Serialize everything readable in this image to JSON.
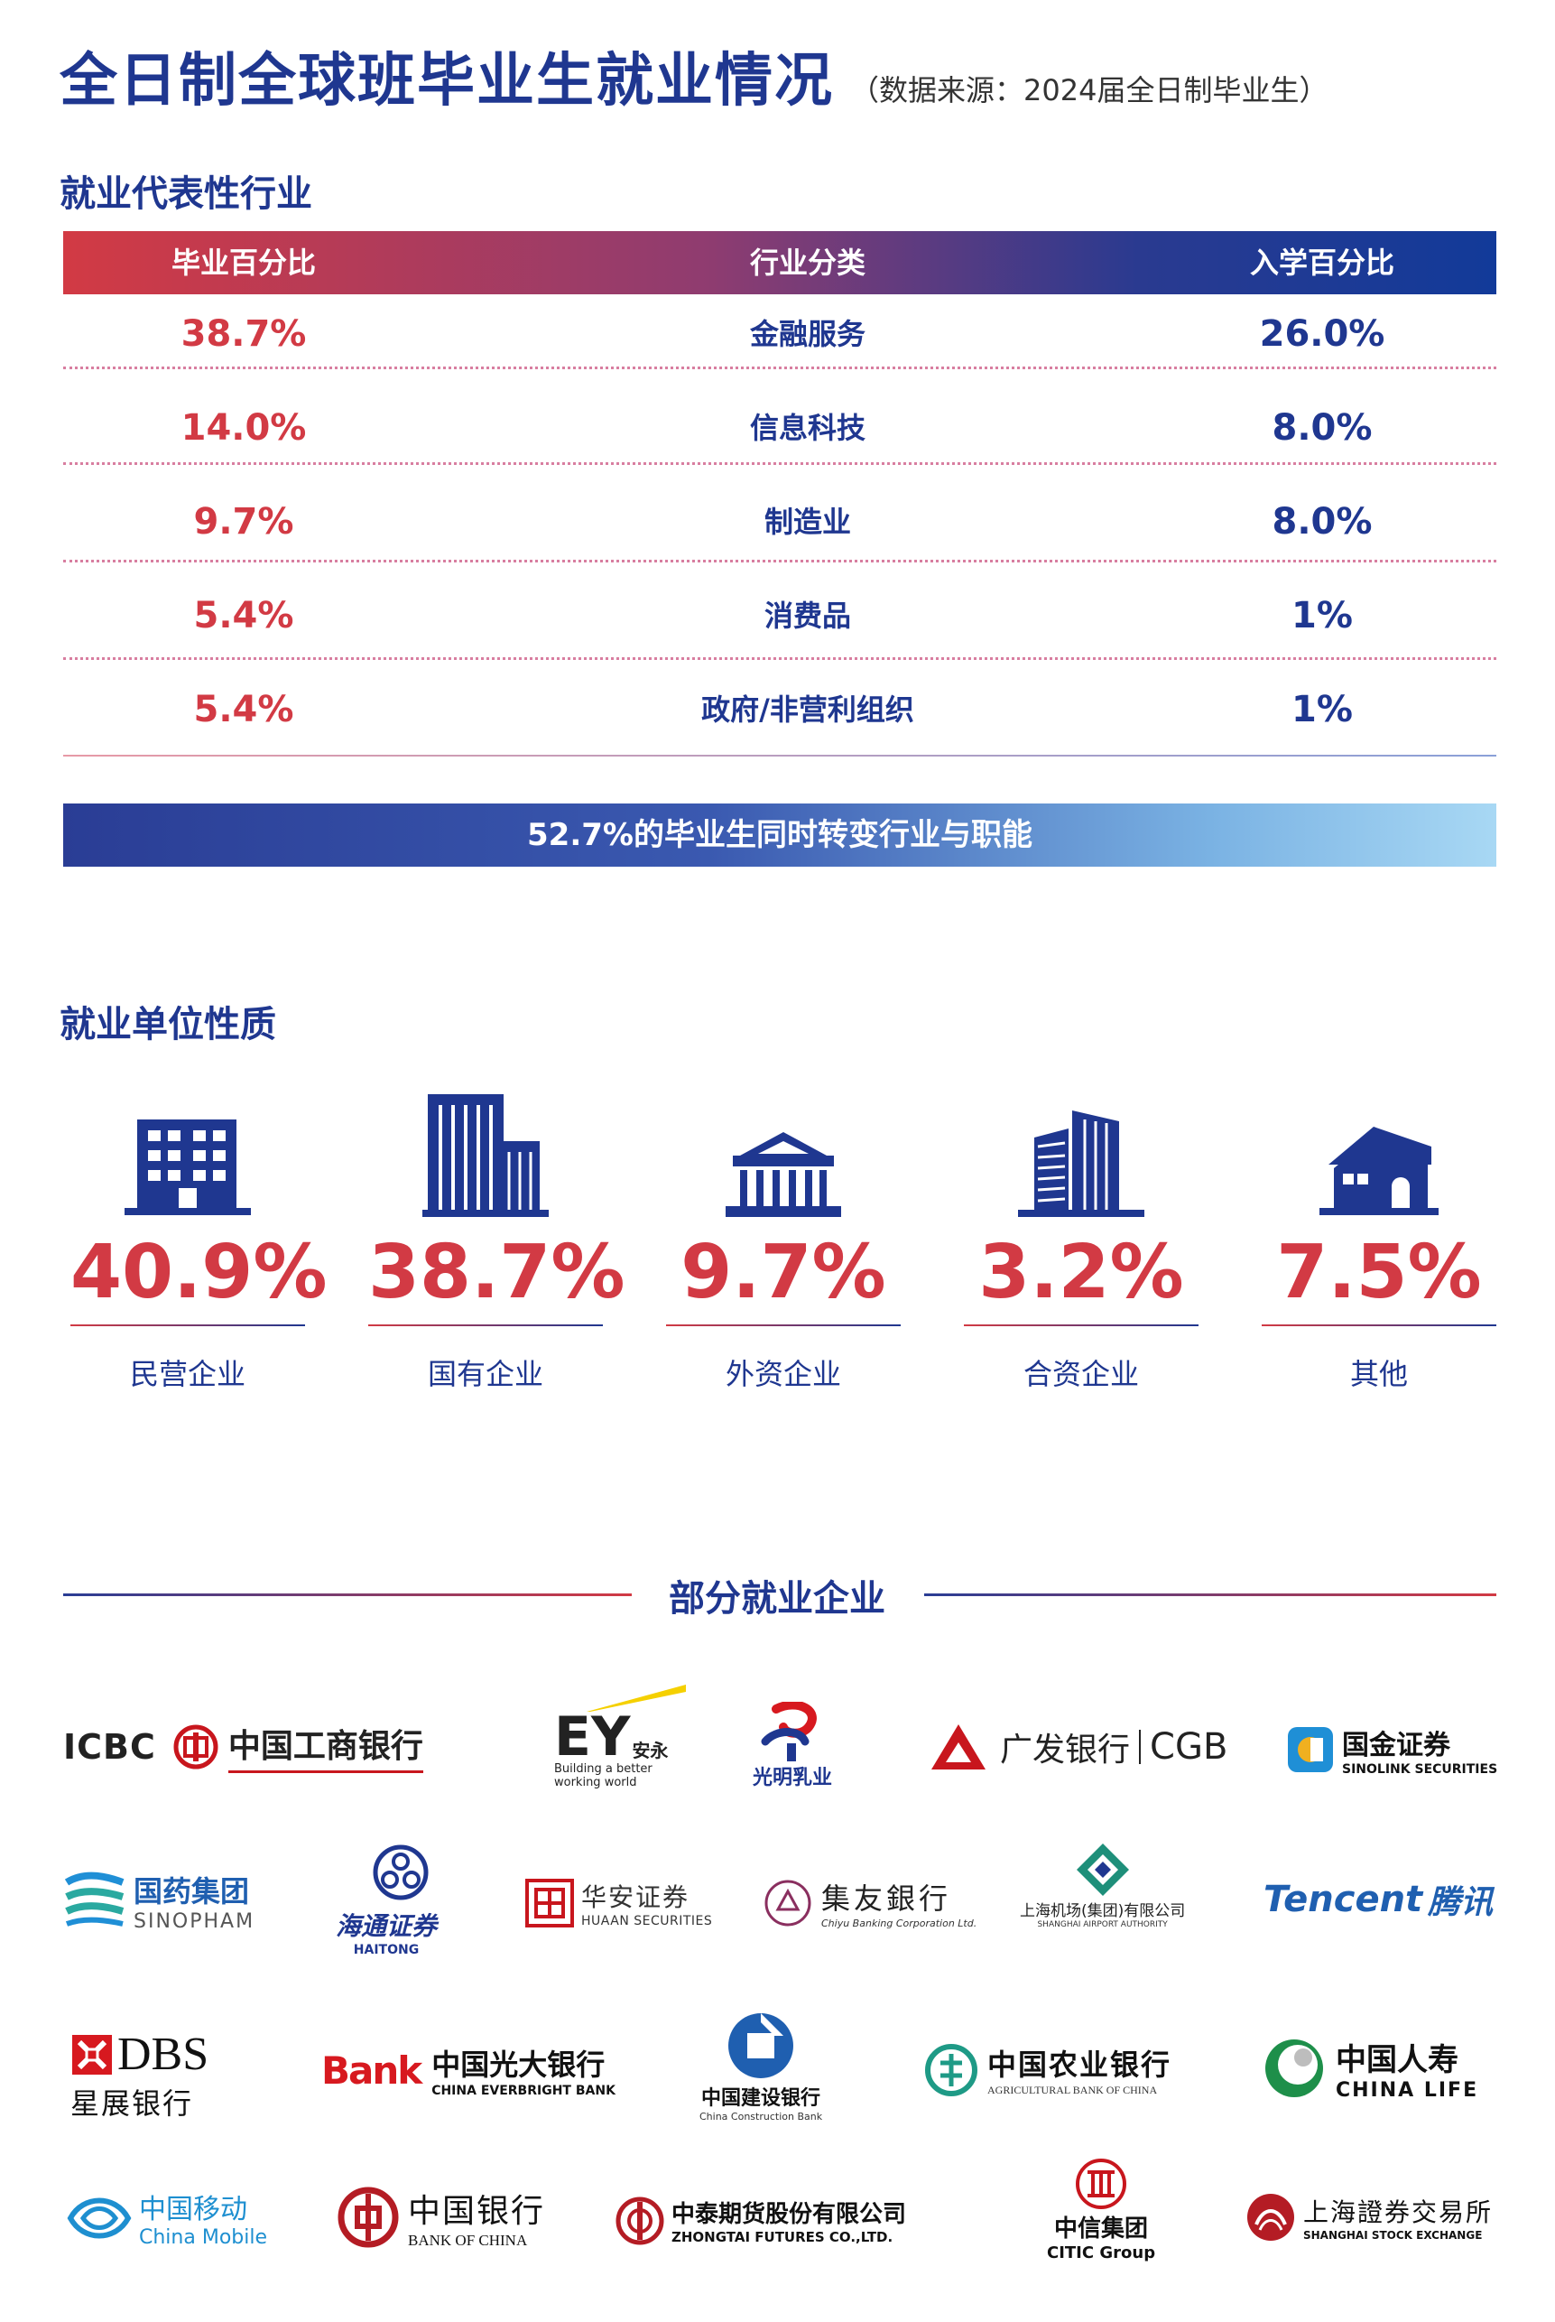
{
  "title": "全日制全球班毕业生就业情况",
  "source_note": "（数据来源：2024届全日制毕业生）",
  "industry_section": {
    "heading": "就业代表性行业",
    "columns": [
      "毕业百分比",
      "行业分类",
      "入学百分比"
    ],
    "rows": [
      {
        "grad": "38.7%",
        "industry": "金融服务",
        "enroll": "26.0%"
      },
      {
        "grad": "14.0%",
        "industry": "信息科技",
        "enroll": "8.0%"
      },
      {
        "grad": "9.7%",
        "industry": "制造业",
        "enroll": "8.0%"
      },
      {
        "grad": "5.4%",
        "industry": "消费品",
        "enroll": "1%"
      },
      {
        "grad": "5.4%",
        "industry": "政府/非营利组织",
        "enroll": "1%"
      }
    ],
    "banner": "52.7%的毕业生同时转变行业与职能"
  },
  "employer_type_section": {
    "heading": "就业单位性质",
    "items": [
      {
        "value": "40.9%",
        "label": "民营企业",
        "icon": "office-building-icon"
      },
      {
        "value": "38.7%",
        "label": "国有企业",
        "icon": "tower-building-icon"
      },
      {
        "value": "9.7%",
        "label": "外资企业",
        "icon": "government-building-icon"
      },
      {
        "value": "3.2%",
        "label": "合资企业",
        "icon": "skyscraper-icon"
      },
      {
        "value": "7.5%",
        "label": "其他",
        "icon": "house-icon"
      }
    ]
  },
  "employers_section": {
    "heading": "部分就业企业",
    "logos": {
      "icbc": {
        "en": "ICBC",
        "cn": "中国工商银行"
      },
      "ey": {
        "en": "EY",
        "cn": "安永",
        "tag1": "Building a better",
        "tag2": "working world"
      },
      "bright": {
        "cn": "光明乳业"
      },
      "cgb": {
        "cn": "广发银行",
        "en": "CGB"
      },
      "sinolink": {
        "cn": "国金证券",
        "en": "SINOLINK SECURITIES"
      },
      "sinopharm": {
        "cn": "国药集团",
        "en": "SINOPHAM"
      },
      "haitong": {
        "cn": "海通证券",
        "en": "HAITONG"
      },
      "huaan": {
        "cn": "华安证券",
        "en": "HUAAN SECURITIES"
      },
      "chiyu": {
        "cn": "集友銀行",
        "en": "Chiyu Banking Corporation Ltd."
      },
      "airport": {
        "cn": "上海机场(集团)有限公司",
        "en": "SHANGHAI AIRPORT AUTHORITY"
      },
      "tencent": {
        "en": "Tencent",
        "cn": "腾讯"
      },
      "dbs": {
        "en": "DBS",
        "cn": "星展银行"
      },
      "everbright": {
        "mark": "Bank",
        "cn": "中国光大银行",
        "en": "CHINA EVERBRIGHT BANK"
      },
      "ccb": {
        "cn": "中国建设银行",
        "en": "China Construction Bank"
      },
      "abc": {
        "cn": "中国农业银行",
        "en": "AGRICULTURAL BANK OF CHINA"
      },
      "chinalife": {
        "cn": "中国人寿",
        "en": "CHINA LIFE"
      },
      "chinamobile": {
        "cn": "中国移动",
        "en": "China Mobile"
      },
      "boc": {
        "cn": "中国银行",
        "en": "BANK OF CHINA"
      },
      "zhongtai": {
        "cn": "中泰期货股份有限公司",
        "en": "ZHONGTAI FUTURES CO.,LTD."
      },
      "citic": {
        "cn": "中信集团",
        "en": "CITIC Group"
      },
      "sse": {
        "cn": "上海證券交易所",
        "en": "SHANGHAI STOCK EXCHANGE"
      }
    }
  }
}
